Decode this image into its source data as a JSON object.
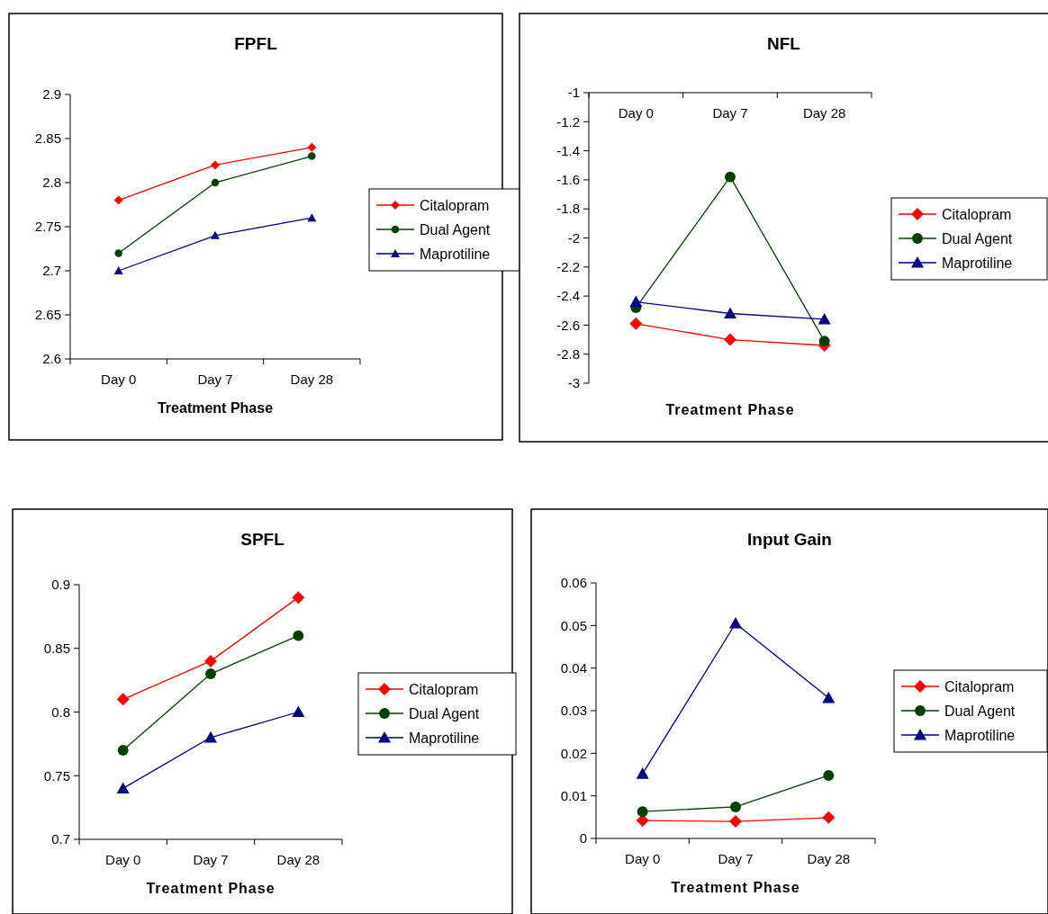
{
  "chart_data": [
    {
      "type": "line",
      "title": "FPFL",
      "xlabel": "Treatment Phase",
      "categories": [
        "Day 0",
        "Day 7",
        "Day 28"
      ],
      "ylim": [
        2.6,
        2.9
      ],
      "yticks": [
        2.6,
        2.65,
        2.7,
        2.75,
        2.8,
        2.85,
        2.9
      ],
      "grid": false,
      "legend": "right",
      "series": [
        {
          "name": "Citalopram",
          "color": "#ff0000",
          "marker": "diamond",
          "values": [
            2.78,
            2.82,
            2.84
          ]
        },
        {
          "name": "Dual Agent",
          "color": "#004000",
          "marker": "circle",
          "values": [
            2.72,
            2.8,
            2.83
          ]
        },
        {
          "name": "Maprotiline",
          "color": "#000080",
          "marker": "triangle",
          "values": [
            2.7,
            2.74,
            2.76
          ]
        }
      ]
    },
    {
      "type": "line",
      "title": "NFL",
      "xlabel": "Treatment Phase",
      "categories": [
        "Day 0",
        "Day 7",
        "Day 28"
      ],
      "ylim": [
        -3,
        -1
      ],
      "yticks": [
        -3,
        -2.8,
        -2.6,
        -2.4,
        -2.2,
        -2,
        -1.8,
        -1.6,
        -1.4,
        -1.2,
        -1
      ],
      "grid": false,
      "legend": "right",
      "series": [
        {
          "name": "Citalopram",
          "color": "#ff0000",
          "marker": "diamond",
          "values": [
            -2.59,
            -2.7,
            -2.74
          ]
        },
        {
          "name": "Dual Agent",
          "color": "#004000",
          "marker": "circle",
          "values": [
            -2.48,
            -1.58,
            -2.71
          ]
        },
        {
          "name": "Maprotiline",
          "color": "#000080",
          "marker": "triangle",
          "values": [
            -2.44,
            -2.52,
            -2.56
          ]
        }
      ]
    },
    {
      "type": "line",
      "title": "SPFL",
      "xlabel": "Treatment Phase",
      "categories": [
        "Day 0",
        "Day 7",
        "Day 28"
      ],
      "ylim": [
        0.7,
        0.9
      ],
      "yticks": [
        0.7,
        0.75,
        0.8,
        0.85,
        0.9
      ],
      "grid": false,
      "legend": "right",
      "series": [
        {
          "name": "Citalopram",
          "color": "#ff0000",
          "marker": "diamond",
          "values": [
            0.81,
            0.84,
            0.89
          ]
        },
        {
          "name": "Dual Agent",
          "color": "#004000",
          "marker": "circle",
          "values": [
            0.77,
            0.83,
            0.86
          ]
        },
        {
          "name": "Maprotiline",
          "color": "#000080",
          "marker": "triangle",
          "values": [
            0.74,
            0.78,
            0.8
          ]
        }
      ]
    },
    {
      "type": "line",
      "title": "Input Gain",
      "xlabel": "Treatment Phase",
      "categories": [
        "Day 0",
        "Day 7",
        "Day 28"
      ],
      "ylim": [
        0,
        0.06
      ],
      "yticks": [
        0,
        0.01,
        0.02,
        0.03,
        0.04,
        0.05,
        0.06
      ],
      "grid": false,
      "legend": "right",
      "series": [
        {
          "name": "Citalopram",
          "color": "#ff0000",
          "marker": "diamond",
          "values": [
            0.0042,
            0.004,
            0.0049
          ]
        },
        {
          "name": "Dual Agent",
          "color": "#004000",
          "marker": "circle",
          "values": [
            0.0063,
            0.0074,
            0.0148
          ]
        },
        {
          "name": "Maprotiline",
          "color": "#000080",
          "marker": "triangle",
          "values": [
            0.0152,
            0.0505,
            0.033
          ]
        }
      ]
    }
  ]
}
